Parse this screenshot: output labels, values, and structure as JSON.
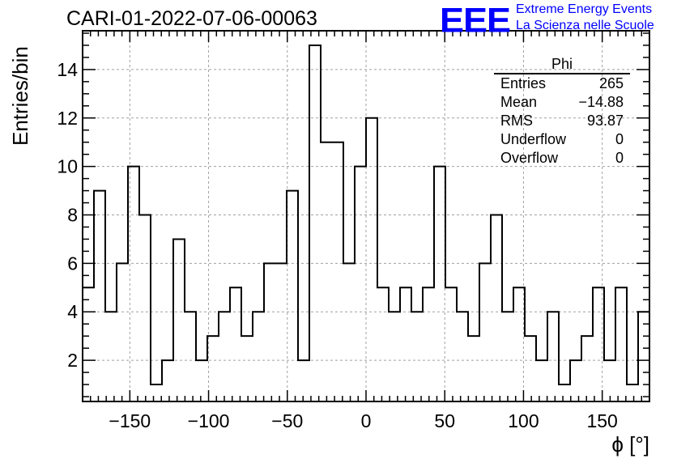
{
  "header": {
    "run_title": "CARI-01-2022-07-06-00063",
    "logo_mark": "EEE",
    "logo_line1": "Extreme Energy Events",
    "logo_line2": "La Scienza nelle Scuole"
  },
  "stats_box": {
    "title": "Phi",
    "rows": [
      {
        "label": "Entries",
        "value": "265"
      },
      {
        "label": "Mean",
        "value": "−14.88"
      },
      {
        "label": "RMS",
        "value": "93.87"
      },
      {
        "label": "Underflow",
        "value": "0"
      },
      {
        "label": "Overflow",
        "value": "0"
      }
    ]
  },
  "chart_data": {
    "type": "bar",
    "style": "step-histogram",
    "ylabel": "Entries/bin",
    "xlabel": "ϕ [°]",
    "xlim": [
      -180,
      180
    ],
    "ylim": [
      0.3,
      15.6
    ],
    "grid": true,
    "bin_width": 7.2,
    "x_ticks": [
      {
        "value": -150,
        "label": "−150"
      },
      {
        "value": -100,
        "label": "−100"
      },
      {
        "value": -50,
        "label": "−50"
      },
      {
        "value": 0,
        "label": "0"
      },
      {
        "value": 50,
        "label": "50"
      },
      {
        "value": 100,
        "label": "100"
      },
      {
        "value": 150,
        "label": "150"
      }
    ],
    "y_ticks": [
      {
        "value": 2,
        "label": "2"
      },
      {
        "value": 4,
        "label": "4"
      },
      {
        "value": 6,
        "label": "6"
      },
      {
        "value": 8,
        "label": "8"
      },
      {
        "value": 10,
        "label": "10"
      },
      {
        "value": 12,
        "label": "12"
      },
      {
        "value": 14,
        "label": "14"
      }
    ],
    "bin_edges_start": -180,
    "values": [
      5,
      9,
      4,
      6,
      10,
      8,
      1,
      2,
      7,
      4,
      2,
      3,
      4,
      5,
      3,
      4,
      6,
      6,
      9,
      2,
      15,
      11,
      11,
      6,
      10,
      12,
      5,
      4,
      5,
      4,
      5,
      10,
      5,
      4,
      3,
      6,
      8,
      4,
      5,
      3,
      2,
      4,
      1,
      2,
      3,
      5,
      2,
      5,
      1,
      4
    ]
  },
  "colors": {
    "axis": "#000000",
    "grid": "#a0a0a0",
    "histogram": "#000000",
    "logo": "#0000ff"
  }
}
